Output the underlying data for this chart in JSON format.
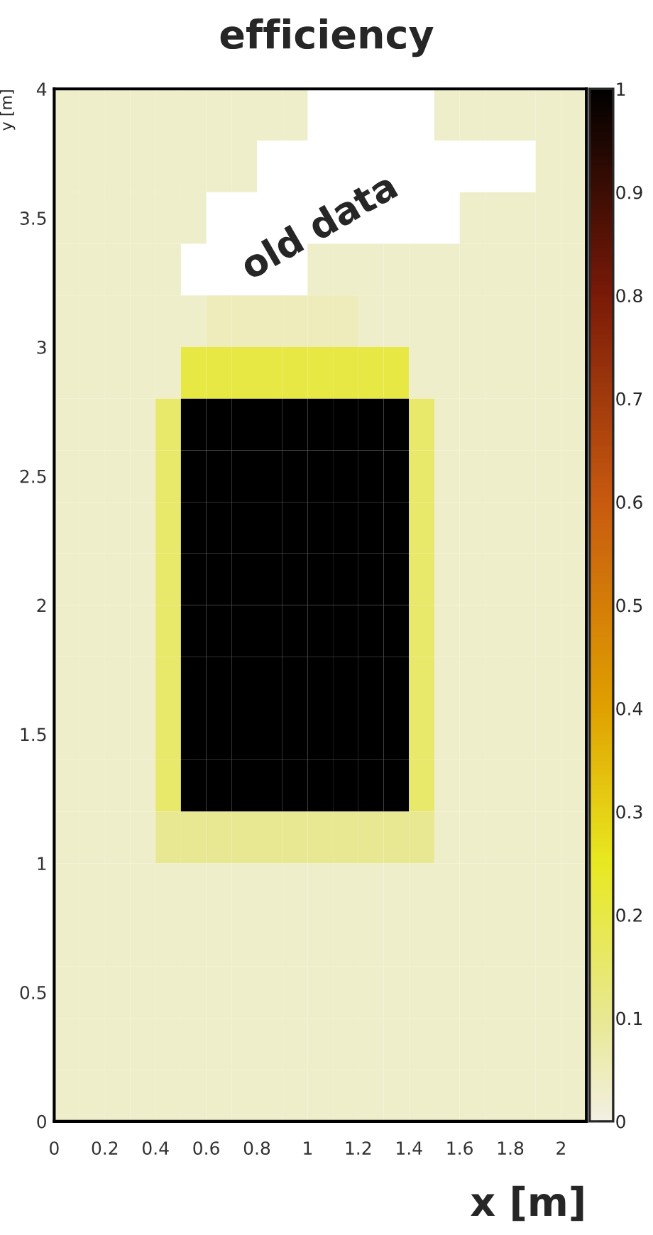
{
  "chart_data": {
    "type": "heatmap",
    "title": "efficiency",
    "xlabel": "x [m]",
    "ylabel": "y [m]",
    "x": [
      0.05,
      0.15,
      0.25,
      0.35,
      0.45,
      0.55,
      0.65,
      0.75,
      0.85,
      0.95,
      1.05,
      1.15,
      1.25,
      1.35,
      1.45,
      1.55,
      1.65,
      1.75,
      1.85,
      1.95,
      2.05
    ],
    "y": [
      3.9,
      3.7,
      3.5,
      3.3,
      3.1,
      2.9,
      2.7,
      2.5,
      2.3,
      2.1,
      1.9,
      1.7,
      1.5,
      1.3,
      1.1,
      0.9,
      0.7,
      0.5,
      0.3,
      0.1
    ],
    "cells": [
      [
        0.03,
        0.03,
        0.03,
        0.03,
        0.03,
        0.03,
        0.03,
        0.03,
        0.03,
        0.03,
        null,
        null,
        null,
        null,
        null,
        0.03,
        0.03,
        0.03,
        0.03,
        0.03,
        0.03
      ],
      [
        0.03,
        0.03,
        0.03,
        0.03,
        0.03,
        0.03,
        0.03,
        0.03,
        null,
        null,
        null,
        null,
        null,
        null,
        null,
        null,
        null,
        null,
        null,
        0.03,
        0.03
      ],
      [
        0.03,
        0.03,
        0.03,
        0.03,
        0.03,
        0.03,
        null,
        null,
        null,
        null,
        null,
        null,
        null,
        null,
        null,
        null,
        0.03,
        0.03,
        0.03,
        0.03,
        0.03
      ],
      [
        0.03,
        0.03,
        0.03,
        0.03,
        0.03,
        null,
        null,
        null,
        null,
        null,
        0.03,
        0.03,
        0.03,
        0.03,
        0.03,
        0.03,
        0.03,
        0.03,
        0.03,
        0.03,
        0.03
      ],
      [
        0.03,
        0.03,
        0.03,
        0.03,
        0.03,
        0.03,
        0.05,
        0.05,
        0.05,
        0.05,
        0.05,
        0.05,
        0.03,
        0.03,
        0.03,
        0.03,
        0.03,
        0.03,
        0.03,
        0.03,
        0.03
      ],
      [
        0.03,
        0.03,
        0.03,
        0.03,
        0.03,
        0.2,
        0.2,
        0.2,
        0.2,
        0.2,
        0.2,
        0.2,
        0.2,
        0.2,
        0.03,
        0.03,
        0.03,
        0.03,
        0.03,
        0.03,
        0.03
      ],
      [
        0.03,
        0.03,
        0.03,
        0.03,
        0.15,
        1,
        1,
        1,
        1,
        1,
        1,
        1,
        1,
        1,
        0.15,
        0.03,
        0.03,
        0.03,
        0.03,
        0.03,
        0.03
      ],
      [
        0.03,
        0.03,
        0.03,
        0.03,
        0.15,
        1,
        1,
        1,
        1,
        1,
        1,
        1,
        1,
        1,
        0.15,
        0.03,
        0.03,
        0.03,
        0.03,
        0.03,
        0.03
      ],
      [
        0.03,
        0.03,
        0.03,
        0.03,
        0.15,
        1,
        1,
        1,
        1,
        1,
        1,
        1,
        1,
        1,
        0.15,
        0.03,
        0.03,
        0.03,
        0.03,
        0.03,
        0.03
      ],
      [
        0.03,
        0.03,
        0.03,
        0.03,
        0.15,
        1,
        1,
        1,
        1,
        1,
        1,
        1,
        1,
        1,
        0.15,
        0.03,
        0.03,
        0.03,
        0.03,
        0.03,
        0.03
      ],
      [
        0.03,
        0.03,
        0.03,
        0.03,
        0.15,
        1,
        1,
        1,
        1,
        1,
        1,
        1,
        1,
        1,
        0.15,
        0.03,
        0.03,
        0.03,
        0.03,
        0.03,
        0.03
      ],
      [
        0.03,
        0.03,
        0.03,
        0.03,
        0.15,
        1,
        1,
        1,
        1,
        1,
        1,
        1,
        1,
        1,
        0.15,
        0.03,
        0.03,
        0.03,
        0.03,
        0.03,
        0.03
      ],
      [
        0.03,
        0.03,
        0.03,
        0.03,
        0.15,
        1,
        1,
        1,
        1,
        1,
        1,
        1,
        1,
        1,
        0.15,
        0.03,
        0.03,
        0.03,
        0.03,
        0.03,
        0.03
      ],
      [
        0.03,
        0.03,
        0.03,
        0.03,
        0.15,
        1,
        1,
        1,
        1,
        1,
        1,
        1,
        1,
        1,
        0.15,
        0.03,
        0.03,
        0.03,
        0.03,
        0.03,
        0.03
      ],
      [
        0.03,
        0.03,
        0.03,
        0.03,
        0.1,
        0.1,
        0.1,
        0.1,
        0.1,
        0.1,
        0.1,
        0.1,
        0.1,
        0.1,
        0.1,
        0.03,
        0.03,
        0.03,
        0.03,
        0.03,
        0.03
      ],
      [
        0.03,
        0.03,
        0.03,
        0.03,
        0.03,
        0.03,
        0.03,
        0.03,
        0.03,
        0.03,
        0.03,
        0.03,
        0.03,
        0.03,
        0.03,
        0.03,
        0.03,
        0.03,
        0.03,
        0.03,
        0.03
      ],
      [
        0.03,
        0.03,
        0.03,
        0.03,
        0.03,
        0.03,
        0.03,
        0.03,
        0.03,
        0.03,
        0.03,
        0.03,
        0.03,
        0.03,
        0.03,
        0.03,
        0.03,
        0.03,
        0.03,
        0.03,
        0.03
      ],
      [
        0.03,
        0.03,
        0.03,
        0.03,
        0.03,
        0.03,
        0.03,
        0.03,
        0.03,
        0.03,
        0.03,
        0.03,
        0.03,
        0.03,
        0.03,
        0.03,
        0.03,
        0.03,
        0.03,
        0.03,
        0.03
      ],
      [
        0.03,
        0.03,
        0.03,
        0.03,
        0.03,
        0.03,
        0.03,
        0.03,
        0.03,
        0.03,
        0.03,
        0.03,
        0.03,
        0.03,
        0.03,
        0.03,
        0.03,
        0.03,
        0.03,
        0.03,
        0.03
      ],
      [
        0.03,
        0.03,
        0.03,
        0.03,
        0.03,
        0.03,
        0.03,
        0.03,
        0.03,
        0.03,
        0.03,
        0.03,
        0.03,
        0.03,
        0.03,
        0.03,
        0.03,
        0.03,
        0.03,
        0.03,
        0.03
      ]
    ],
    "xlim": [
      0,
      2.1
    ],
    "ylim": [
      0,
      4
    ],
    "xticks": [
      0,
      0.2,
      0.4,
      0.6,
      0.8,
      1,
      1.2,
      1.4,
      1.6,
      1.8,
      2
    ],
    "yticks": [
      0,
      0.5,
      1,
      1.5,
      2,
      2.5,
      3,
      3.5,
      4
    ],
    "clim": [
      0,
      1
    ],
    "cticks": [
      0,
      0.1,
      0.2,
      0.3,
      0.4,
      0.5,
      0.6,
      0.7,
      0.8,
      0.9,
      1
    ],
    "annotations": [
      "old data"
    ],
    "grid": false
  }
}
